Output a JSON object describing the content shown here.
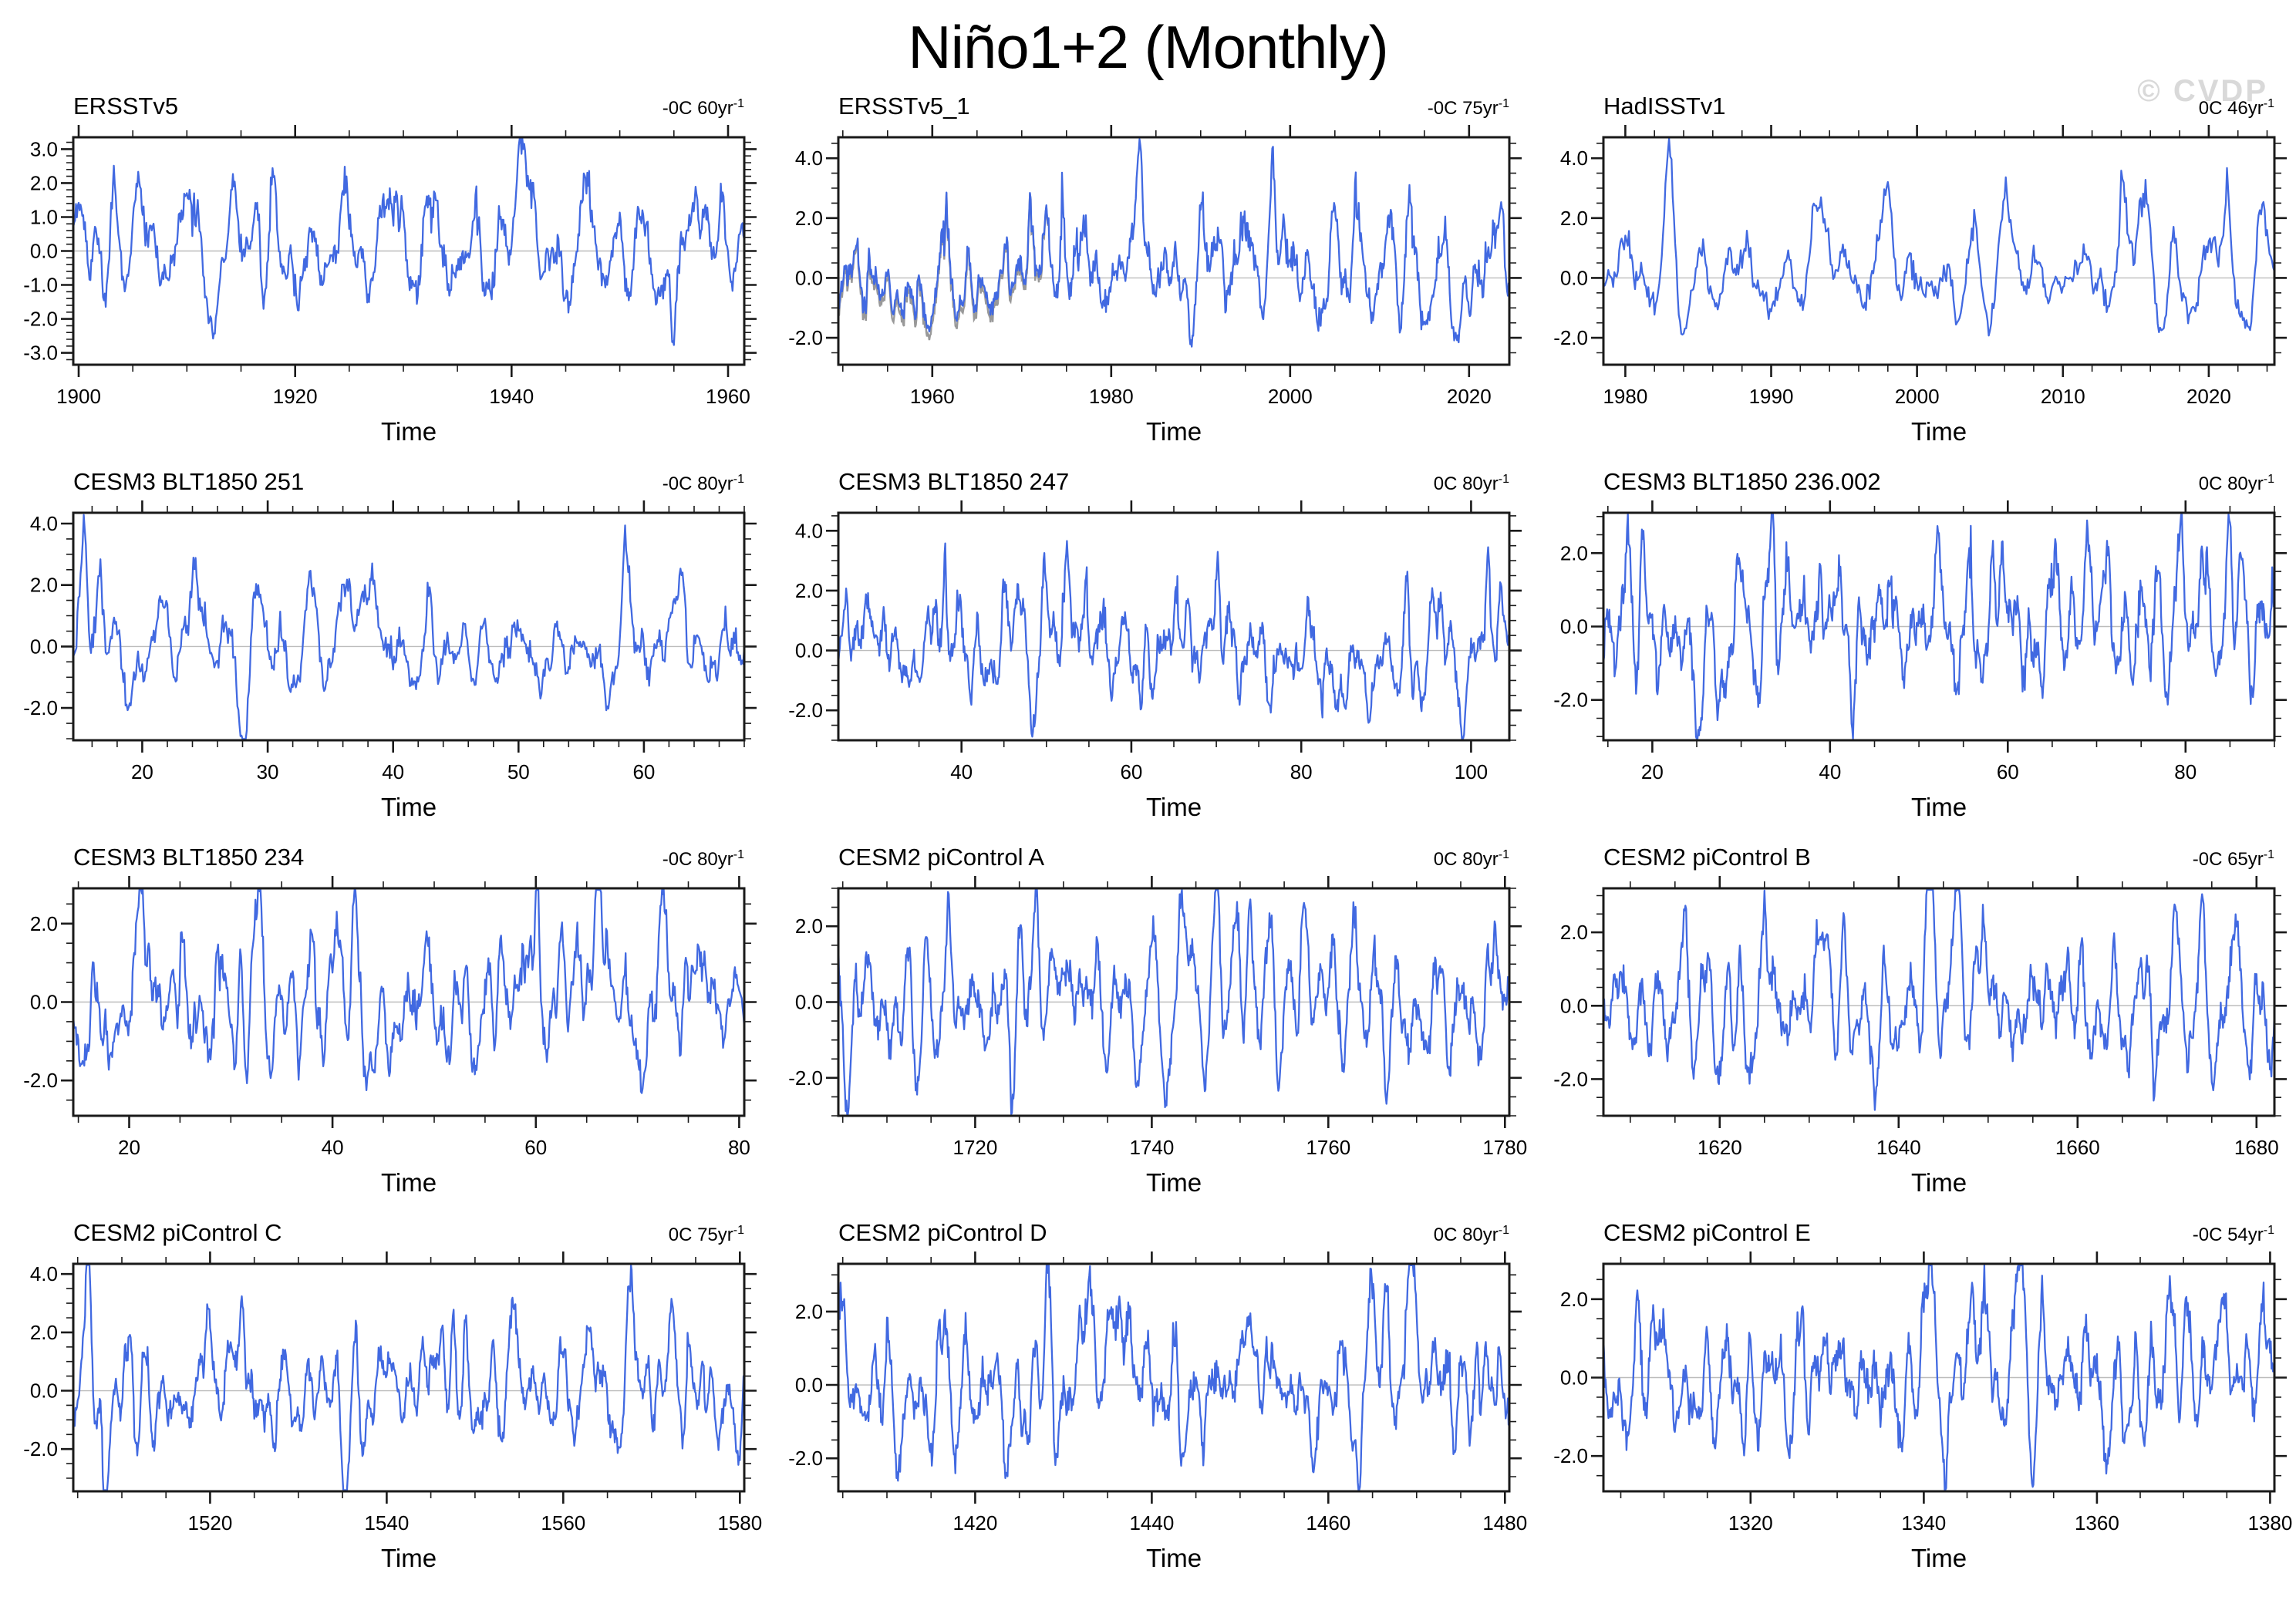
{
  "page": {
    "title": "Niño1+2 (Monthly)",
    "watermark": "© CVDP",
    "x_axis_label": "Time"
  },
  "colors": {
    "line": "#4169E1",
    "shadow_line": "#999999",
    "zero_line": "#bcbcbc",
    "axis": "#1a1a1a",
    "watermark": "#d9d9d9"
  },
  "chart_data": [
    {
      "type": "line",
      "title": "ERSSTv5",
      "trend": "-0C 60yr",
      "trend_sup": "-1",
      "xlabel": "Time",
      "x_range": [
        1899.5,
        1961.5
      ],
      "y_range": [
        -3.35,
        3.35
      ],
      "x_ticks": [
        1900,
        1920,
        1940,
        1960
      ],
      "x_minor_step": 5,
      "y_ticks": [
        3.0,
        2.0,
        1.0,
        0.0,
        -1.0,
        -2.0,
        -3.0
      ],
      "y_minor_step": 0.2,
      "series_params": {
        "seed": 101,
        "period": 34,
        "damp": 0.89,
        "std": 0.85,
        "skew": 0.25,
        "events": [
          {
            "x": 1918.0,
            "amp": 2.3,
            "w": 4
          },
          {
            "x": 1926.0,
            "amp": 1.5,
            "w": 4
          },
          {
            "x": 1932.0,
            "amp": 1.7,
            "w": 4
          },
          {
            "x": 1941.0,
            "amp": 1.6,
            "w": 5
          },
          {
            "x": 1905.0,
            "amp": 1.2,
            "w": 4
          },
          {
            "x": 1958.0,
            "amp": 1.5,
            "w": 4
          },
          {
            "x": 1955.0,
            "amp": -1.9,
            "w": 4
          },
          {
            "x": 1917.0,
            "amp": -1.0,
            "w": 3
          }
        ]
      }
    },
    {
      "type": "line",
      "title": "ERSSTv5_1",
      "trend": "-0C 75yr",
      "trend_sup": "-1",
      "xlabel": "Time",
      "x_range": [
        1949.5,
        2024.5
      ],
      "y_range": [
        -2.9,
        4.7
      ],
      "x_ticks": [
        1960,
        1980,
        2000,
        2020
      ],
      "x_minor_step": 5,
      "y_ticks": [
        4.0,
        2.0,
        0.0,
        -2.0
      ],
      "y_minor_step": 0.5,
      "shadow_until_x": 1973,
      "series_params": {
        "seed": 202,
        "period": 32,
        "damp": 0.9,
        "std": 0.85,
        "skew": 0.3,
        "events": [
          {
            "x": 1983.0,
            "amp": 3.3,
            "w": 4
          },
          {
            "x": 1997.9,
            "amp": 3.4,
            "w": 4
          },
          {
            "x": 2023.7,
            "amp": 3.2,
            "w": 4
          },
          {
            "x": 1972.8,
            "amp": 1.5,
            "w": 4
          },
          {
            "x": 1957.6,
            "amp": 1.4,
            "w": 4
          },
          {
            "x": 1992.0,
            "amp": 1.2,
            "w": 4
          }
        ]
      }
    },
    {
      "type": "line",
      "title": "HadISSTv1",
      "trend": "0C 46yr",
      "trend_sup": "-1",
      "xlabel": "Time",
      "x_range": [
        1978.5,
        2024.5
      ],
      "y_range": [
        -2.9,
        4.7
      ],
      "x_ticks": [
        1980,
        1990,
        2000,
        2010,
        2020
      ],
      "x_minor_step": 2,
      "y_ticks": [
        4.0,
        2.0,
        0.0,
        -2.0
      ],
      "y_minor_step": 0.5,
      "series_params": {
        "seed": 303,
        "period": 30,
        "damp": 0.9,
        "std": 0.8,
        "skew": 0.3,
        "events": [
          {
            "x": 1983.0,
            "amp": 3.5,
            "w": 4
          },
          {
            "x": 1997.9,
            "amp": 3.5,
            "w": 4
          },
          {
            "x": 1987.2,
            "amp": 1.2,
            "w": 4
          },
          {
            "x": 2015.8,
            "amp": 1.6,
            "w": 4
          },
          {
            "x": 2023.6,
            "amp": 2.0,
            "w": 5
          }
        ]
      }
    },
    {
      "type": "line",
      "title": "CESM3 BLT1850 251",
      "trend": "-0C 80yr",
      "trend_sup": "-1",
      "xlabel": "Time",
      "x_range": [
        14.5,
        68
      ],
      "y_range": [
        -3.05,
        4.35
      ],
      "x_ticks": [
        20,
        30,
        40,
        50,
        60
      ],
      "x_minor_step": 2,
      "y_ticks": [
        4.0,
        2.0,
        0.0,
        -2.0
      ],
      "y_minor_step": 0.5,
      "series_params": {
        "seed": 404,
        "period": 30,
        "damp": 0.88,
        "std": 0.85,
        "skew": 0.18,
        "events": [
          {
            "x": 15.4,
            "amp": 3.4,
            "w": 3
          },
          {
            "x": 28.3,
            "amp": -2.0,
            "w": 4
          },
          {
            "x": 47.0,
            "amp": 1.7,
            "w": 3
          },
          {
            "x": 63.0,
            "amp": 1.8,
            "w": 3
          },
          {
            "x": 58.8,
            "amp": 1.3,
            "w": 3
          },
          {
            "x": 29.6,
            "amp": 1.5,
            "w": 3
          }
        ]
      }
    },
    {
      "type": "line",
      "title": "CESM3 BLT1850 247",
      "trend": "0C 80yr",
      "trend_sup": "-1",
      "xlabel": "Time",
      "x_range": [
        25.5,
        104.5
      ],
      "y_range": [
        -3.0,
        4.6
      ],
      "x_ticks": [
        40,
        60,
        80,
        100
      ],
      "x_minor_step": 5,
      "y_ticks": [
        4.0,
        2.0,
        0.0,
        -2.0
      ],
      "y_minor_step": 0.5,
      "series_params": {
        "seed": 505,
        "period": 30,
        "damp": 0.88,
        "std": 0.9,
        "skew": 0.18,
        "events": [
          {
            "x": 70.2,
            "amp": 3.5,
            "w": 3
          },
          {
            "x": 46.8,
            "amp": 1.8,
            "w": 3
          },
          {
            "x": 66.5,
            "amp": 1.8,
            "w": 4
          },
          {
            "x": 80.8,
            "amp": 1.5,
            "w": 3
          },
          {
            "x": 102.0,
            "amp": 1.6,
            "w": 3
          },
          {
            "x": 72.5,
            "amp": -2.0,
            "w": 4
          },
          {
            "x": 99.0,
            "amp": -1.8,
            "w": 4
          }
        ]
      }
    },
    {
      "type": "line",
      "title": "CESM3 BLT1850 236.002",
      "trend": "0C 80yr",
      "trend_sup": "-1",
      "xlabel": "Time",
      "x_range": [
        14.5,
        90
      ],
      "y_range": [
        -3.1,
        3.1
      ],
      "x_ticks": [
        20,
        40,
        60,
        80
      ],
      "x_minor_step": 5,
      "y_ticks": [
        2.0,
        0.0,
        -2.0
      ],
      "y_minor_step": 0.5,
      "series_params": {
        "seed": 606,
        "period": 30,
        "damp": 0.88,
        "std": 1.0,
        "skew": 0.1,
        "events": [
          {
            "x": 18.8,
            "amp": 2.2,
            "w": 4
          },
          {
            "x": 22.5,
            "amp": 2.0,
            "w": 4
          },
          {
            "x": 44.8,
            "amp": 2.2,
            "w": 3
          },
          {
            "x": 69.0,
            "amp": 2.3,
            "w": 5
          },
          {
            "x": 25.5,
            "amp": -2.3,
            "w": 4
          },
          {
            "x": 42.5,
            "amp": -1.9,
            "w": 3
          },
          {
            "x": 86.0,
            "amp": 1.5,
            "w": 4
          }
        ]
      }
    },
    {
      "type": "line",
      "title": "CESM3 BLT1850 234",
      "trend": "-0C 80yr",
      "trend_sup": "-1",
      "xlabel": "Time",
      "x_range": [
        14.5,
        80.5
      ],
      "y_range": [
        -2.9,
        2.9
      ],
      "x_ticks": [
        20,
        40,
        60,
        80
      ],
      "x_minor_step": 5,
      "y_ticks": [
        2.0,
        0.0,
        -2.0
      ],
      "y_minor_step": 0.5,
      "series_params": {
        "seed": 707,
        "period": 29,
        "damp": 0.88,
        "std": 1.0,
        "skew": 0.1,
        "events": [
          {
            "x": 31.0,
            "amp": 2.2,
            "w": 3
          },
          {
            "x": 21.0,
            "amp": 2.0,
            "w": 4
          },
          {
            "x": 48.0,
            "amp": 1.6,
            "w": 3
          },
          {
            "x": 66.0,
            "amp": 1.7,
            "w": 3
          },
          {
            "x": 79.0,
            "amp": 1.8,
            "w": 3
          },
          {
            "x": 30.5,
            "amp": -2.0,
            "w": 3
          }
        ]
      }
    },
    {
      "type": "line",
      "title": "CESM2 piControl A",
      "trend": "0C 80yr",
      "trend_sup": "-1",
      "xlabel": "Time",
      "x_range": [
        1704.5,
        1780.5
      ],
      "y_range": [
        -3.0,
        3.0
      ],
      "x_ticks": [
        1720,
        1740,
        1760,
        1780
      ],
      "x_minor_step": 5,
      "y_ticks": [
        2.0,
        0.0,
        -2.0
      ],
      "y_minor_step": 0.5,
      "series_params": {
        "seed": 808,
        "period": 28,
        "damp": 0.93,
        "std": 1.05,
        "skew": 0.08,
        "events": [
          {
            "x": 1735.0,
            "amp": -2.2,
            "w": 4
          },
          {
            "x": 1751.0,
            "amp": 2.0,
            "w": 4
          },
          {
            "x": 1757.0,
            "amp": 1.8,
            "w": 3
          },
          {
            "x": 1772.0,
            "amp": 1.7,
            "w": 3
          },
          {
            "x": 1717.0,
            "amp": 1.5,
            "w": 3
          }
        ]
      }
    },
    {
      "type": "line",
      "title": "CESM2 piControl B",
      "trend": "-0C 65yr",
      "trend_sup": "-1",
      "xlabel": "Time",
      "x_range": [
        1607,
        1682
      ],
      "y_range": [
        -3.0,
        3.2
      ],
      "x_ticks": [
        1620,
        1640,
        1660,
        1680
      ],
      "x_minor_step": 5,
      "y_ticks": [
        2.0,
        0.0,
        -2.0
      ],
      "y_minor_step": 0.5,
      "series_params": {
        "seed": 909,
        "period": 28,
        "damp": 0.92,
        "std": 1.05,
        "skew": 0.08,
        "events": [
          {
            "x": 1632.0,
            "amp": 2.2,
            "w": 4
          },
          {
            "x": 1667.0,
            "amp": 2.0,
            "w": 3
          },
          {
            "x": 1645.0,
            "amp": 1.5,
            "w": 3
          },
          {
            "x": 1668.5,
            "amp": -1.8,
            "w": 3
          }
        ]
      }
    },
    {
      "type": "line",
      "title": "CESM2 piControl C",
      "trend": "0C 75yr",
      "trend_sup": "-1",
      "xlabel": "Time",
      "x_range": [
        1504.5,
        1580.5
      ],
      "y_range": [
        -3.45,
        4.35
      ],
      "x_ticks": [
        1520,
        1540,
        1560,
        1580
      ],
      "x_minor_step": 5,
      "y_ticks": [
        4.0,
        2.0,
        0.0,
        -2.0
      ],
      "y_minor_step": 0.5,
      "series_params": {
        "seed": 1010,
        "period": 30,
        "damp": 0.9,
        "std": 1.05,
        "skew": 0.12,
        "events": [
          {
            "x": 1506.3,
            "amp": 3.4,
            "w": 4
          },
          {
            "x": 1507.9,
            "amp": -2.6,
            "w": 5
          },
          {
            "x": 1535.0,
            "amp": -2.4,
            "w": 4
          },
          {
            "x": 1511.0,
            "amp": 2.2,
            "w": 3
          },
          {
            "x": 1552.0,
            "amp": 1.6,
            "w": 3
          },
          {
            "x": 1571.0,
            "amp": 1.5,
            "w": 3
          }
        ]
      }
    },
    {
      "type": "line",
      "title": "CESM2 piControl D",
      "trend": "0C 80yr",
      "trend_sup": "-1",
      "xlabel": "Time",
      "x_range": [
        1404.5,
        1480.5
      ],
      "y_range": [
        -2.9,
        3.3
      ],
      "x_ticks": [
        1420,
        1440,
        1460,
        1480
      ],
      "x_minor_step": 5,
      "y_ticks": [
        2.0,
        0.0,
        -2.0
      ],
      "y_minor_step": 0.5,
      "series_params": {
        "seed": 1111,
        "period": 29,
        "damp": 0.91,
        "std": 1.0,
        "skew": 0.12,
        "events": [
          {
            "x": 1451.0,
            "amp": 2.6,
            "w": 4
          },
          {
            "x": 1427.0,
            "amp": 2.0,
            "w": 3
          },
          {
            "x": 1470.0,
            "amp": 1.8,
            "w": 3
          },
          {
            "x": 1463.5,
            "amp": -2.0,
            "w": 3
          }
        ]
      }
    },
    {
      "type": "line",
      "title": "CESM2 piControl E",
      "trend": "-0C 54yr",
      "trend_sup": "-1",
      "xlabel": "Time",
      "x_range": [
        1303,
        1380.5
      ],
      "y_range": [
        -2.9,
        2.9
      ],
      "x_ticks": [
        1320,
        1340,
        1360,
        1380
      ],
      "x_minor_step": 5,
      "y_ticks": [
        2.0,
        0.0,
        -2.0
      ],
      "y_minor_step": 0.5,
      "series_params": {
        "seed": 1212,
        "period": 30,
        "damp": 0.9,
        "std": 0.95,
        "skew": 0.1,
        "events": [
          {
            "x": 1340.0,
            "amp": 2.2,
            "w": 4
          },
          {
            "x": 1369.0,
            "amp": 2.0,
            "w": 4
          },
          {
            "x": 1342.5,
            "amp": -1.9,
            "w": 3
          },
          {
            "x": 1326.0,
            "amp": 1.5,
            "w": 3
          }
        ]
      }
    }
  ]
}
